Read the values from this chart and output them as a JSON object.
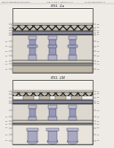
{
  "bg_color": "#eeebe6",
  "header_text1": "Patent Application Publication",
  "header_text2": "Aug. 5, 2014   Sheet 2 of 14",
  "header_text3": "US 2014/0151634 A1",
  "fig_a_label": "FIG. 2a",
  "fig_b_label": "FIG. 2B",
  "colors": {
    "white": "#ffffff",
    "light_gray": "#e0e0e0",
    "mid_gray": "#b8b8b8",
    "dark_gray": "#888888",
    "very_dark": "#444444",
    "border": "#333333",
    "hatch_bg": "#c8c4bc",
    "hatch_fg": "#888880",
    "pillar_fill": "#a8a8c0",
    "pillar_dark": "#7878a0",
    "layer_blue": "#9898b8",
    "layer_tan": "#c8b898",
    "layer_cream": "#d8cdb8",
    "layer_dark": "#707070",
    "substrate": "#b8b0a0",
    "metal_light": "#d0ccc0",
    "insulator_light": "#dddad4",
    "top_stripe": "#c0b8a8",
    "ref_line": "#555555"
  }
}
